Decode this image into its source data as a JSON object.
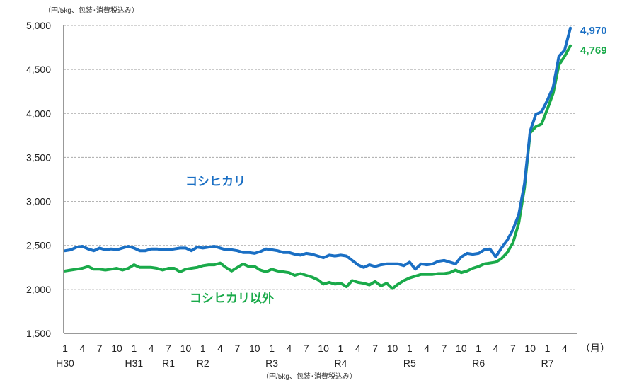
{
  "chart_data": {
    "type": "line",
    "unit_label_top": "（円/5kg、包装･消費税込み）",
    "unit_label_bottom": "（円/5kg、包装･消費税込み）",
    "x_unit": "（月）",
    "ylim": [
      1500,
      5000
    ],
    "y_ticks": [
      "1,500",
      "2,000",
      "2,500",
      "3,000",
      "3,500",
      "4,000",
      "4,500",
      "5,000"
    ],
    "y_tick_values": [
      1500,
      2000,
      2500,
      3000,
      3500,
      4000,
      4500,
      5000
    ],
    "grid": "horizontal dashed",
    "x_start": "2018-01",
    "x_end": "2025-05",
    "month_ticks": [
      "1",
      "4",
      "7",
      "10",
      "1",
      "4",
      "7",
      "10",
      "1",
      "4",
      "7",
      "10",
      "1",
      "4",
      "7",
      "10",
      "1",
      "4",
      "7",
      "10",
      "1",
      "4",
      "7",
      "10",
      "1",
      "4",
      "7",
      "10",
      "1",
      "4"
    ],
    "eras": [
      {
        "label": "H30",
        "month_index": 0
      },
      {
        "label": "H31",
        "month_index": 12
      },
      {
        "label": "R1",
        "month_index": 18
      },
      {
        "label": "R2",
        "month_index": 24
      },
      {
        "label": "R3",
        "month_index": 36
      },
      {
        "label": "R4",
        "month_index": 48
      },
      {
        "label": "R5",
        "month_index": 60
      },
      {
        "label": "R6",
        "month_index": 72
      },
      {
        "label": "R7",
        "month_index": 84
      }
    ],
    "series": [
      {
        "name": "コシヒカリ",
        "color": "#1a6fc4",
        "end_label": "4,970",
        "values": [
          2440,
          2450,
          2480,
          2490,
          2460,
          2440,
          2470,
          2450,
          2460,
          2450,
          2470,
          2490,
          2470,
          2440,
          2440,
          2460,
          2460,
          2450,
          2450,
          2460,
          2470,
          2470,
          2440,
          2480,
          2470,
          2480,
          2490,
          2470,
          2450,
          2450,
          2440,
          2420,
          2420,
          2410,
          2430,
          2460,
          2450,
          2440,
          2420,
          2420,
          2400,
          2390,
          2410,
          2400,
          2380,
          2360,
          2390,
          2380,
          2390,
          2380,
          2330,
          2280,
          2250,
          2280,
          2260,
          2280,
          2290,
          2290,
          2290,
          2270,
          2310,
          2230,
          2290,
          2280,
          2290,
          2320,
          2330,
          2310,
          2290,
          2370,
          2410,
          2400,
          2410,
          2450,
          2460,
          2370,
          2470,
          2560,
          2680,
          2850,
          3200,
          3800,
          3990,
          4020,
          4150,
          4300,
          4650,
          4720,
          4970
        ]
      },
      {
        "name": "コシヒカリ以外",
        "color": "#1aaa4a",
        "end_label": "4,769",
        "values": [
          2210,
          2220,
          2230,
          2240,
          2260,
          2230,
          2230,
          2220,
          2230,
          2240,
          2220,
          2240,
          2280,
          2250,
          2250,
          2250,
          2240,
          2220,
          2240,
          2240,
          2200,
          2230,
          2240,
          2250,
          2270,
          2280,
          2280,
          2300,
          2250,
          2210,
          2250,
          2290,
          2260,
          2260,
          2220,
          2200,
          2230,
          2210,
          2200,
          2190,
          2160,
          2180,
          2160,
          2140,
          2110,
          2060,
          2080,
          2060,
          2070,
          2030,
          2100,
          2080,
          2070,
          2050,
          2090,
          2040,
          2070,
          2010,
          2060,
          2100,
          2130,
          2150,
          2170,
          2170,
          2170,
          2180,
          2180,
          2190,
          2220,
          2190,
          2210,
          2240,
          2260,
          2290,
          2300,
          2310,
          2350,
          2420,
          2530,
          2750,
          3150,
          3780,
          3850,
          3880,
          4050,
          4230,
          4550,
          4650,
          4769
        ]
      }
    ]
  }
}
